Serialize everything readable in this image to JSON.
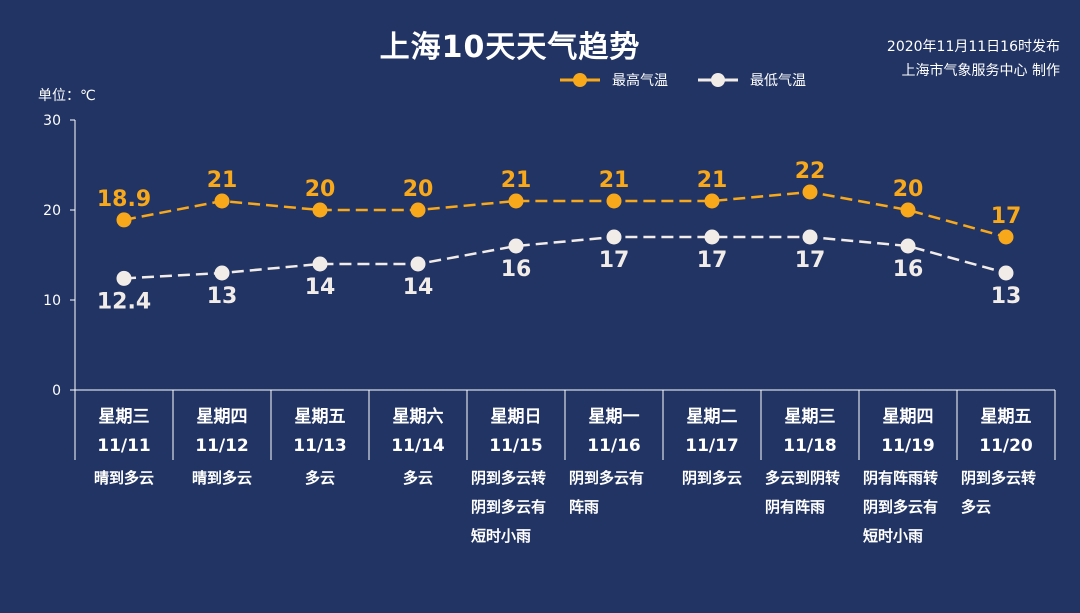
{
  "title": "上海10天天气趋势",
  "publish": {
    "line1": "2020年11月11日16时发布",
    "line2": "上海市气象服务中心 制作"
  },
  "unit_label": "单位：℃",
  "legend": {
    "high": "最高气温",
    "low": "最低气温"
  },
  "colors": {
    "background": "#223464",
    "high": "#f7a81b",
    "low": "#f2ece8",
    "axis": "#ffffff"
  },
  "chart_data": {
    "type": "line",
    "ylim": [
      0,
      30
    ],
    "yticks": [
      0,
      10,
      20,
      30
    ],
    "categories": [
      "11/11",
      "11/12",
      "11/13",
      "11/14",
      "11/15",
      "11/16",
      "11/17",
      "11/18",
      "11/19",
      "11/20"
    ],
    "weekdays": [
      "星期三",
      "星期四",
      "星期五",
      "星期六",
      "星期日",
      "星期一",
      "星期二",
      "星期三",
      "星期四",
      "星期五"
    ],
    "weather": [
      [
        "晴到多云"
      ],
      [
        "晴到多云"
      ],
      [
        "多云"
      ],
      [
        "多云"
      ],
      [
        "阴到多云转",
        "阴到多云有",
        "短时小雨"
      ],
      [
        "阴到多云有",
        "阵雨"
      ],
      [
        "阴到多云"
      ],
      [
        "多云到阴转",
        "阴有阵雨"
      ],
      [
        "阴有阵雨转",
        "阴到多云有",
        "短时小雨"
      ],
      [
        "阴到多云转",
        "多云"
      ]
    ],
    "series": [
      {
        "name": "最高气温",
        "key": "high",
        "values": [
          18.9,
          21,
          20,
          20,
          21,
          21,
          21,
          22,
          20,
          17
        ]
      },
      {
        "name": "最低气温",
        "key": "low",
        "values": [
          12.4,
          13,
          14,
          14,
          16,
          17,
          17,
          17,
          16,
          13
        ]
      }
    ]
  }
}
